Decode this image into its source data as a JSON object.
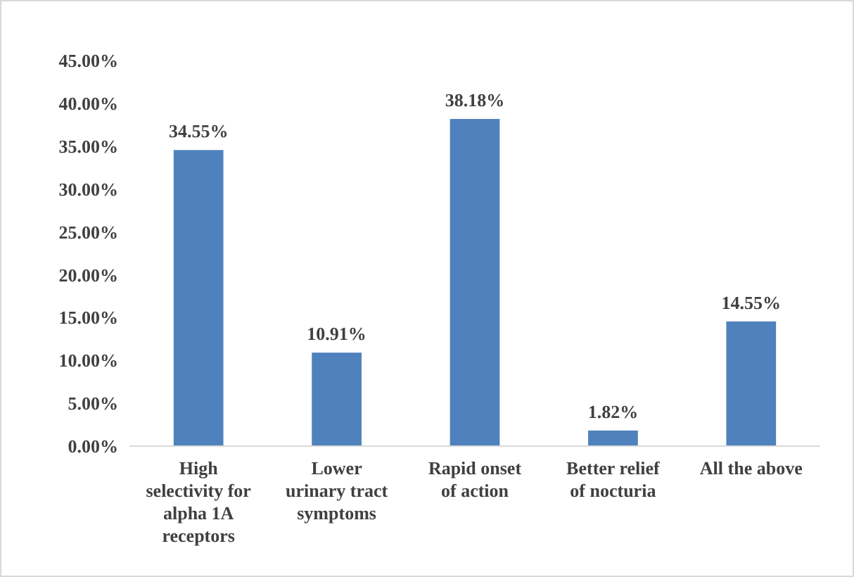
{
  "chart_data": {
    "type": "bar",
    "categories": [
      "High\nselectivity for\nalpha 1A\nreceptors",
      "Lower\nurinary tract\nsymptoms",
      "Rapid onset\nof action",
      "Better relief\nof nocturia",
      "All the above"
    ],
    "values": [
      34.55,
      10.91,
      38.18,
      1.82,
      14.55
    ],
    "value_labels": [
      "34.55%",
      "10.91%",
      "38.18%",
      "1.82%",
      "14.55%"
    ],
    "color": "#4f81bd",
    "ylim": [
      0,
      45
    ],
    "yticks": [
      {
        "value": 0,
        "label": "0.00%"
      },
      {
        "value": 5,
        "label": "5.00%"
      },
      {
        "value": 10,
        "label": "10.00%"
      },
      {
        "value": 15,
        "label": "15.00%"
      },
      {
        "value": 20,
        "label": "20.00%"
      },
      {
        "value": 25,
        "label": "25.00%"
      },
      {
        "value": 30,
        "label": "30.00%"
      },
      {
        "value": 35,
        "label": "35.00%"
      },
      {
        "value": 40,
        "label": "40.00%"
      },
      {
        "value": 45,
        "label": "45.00%"
      }
    ],
    "grid": false
  }
}
